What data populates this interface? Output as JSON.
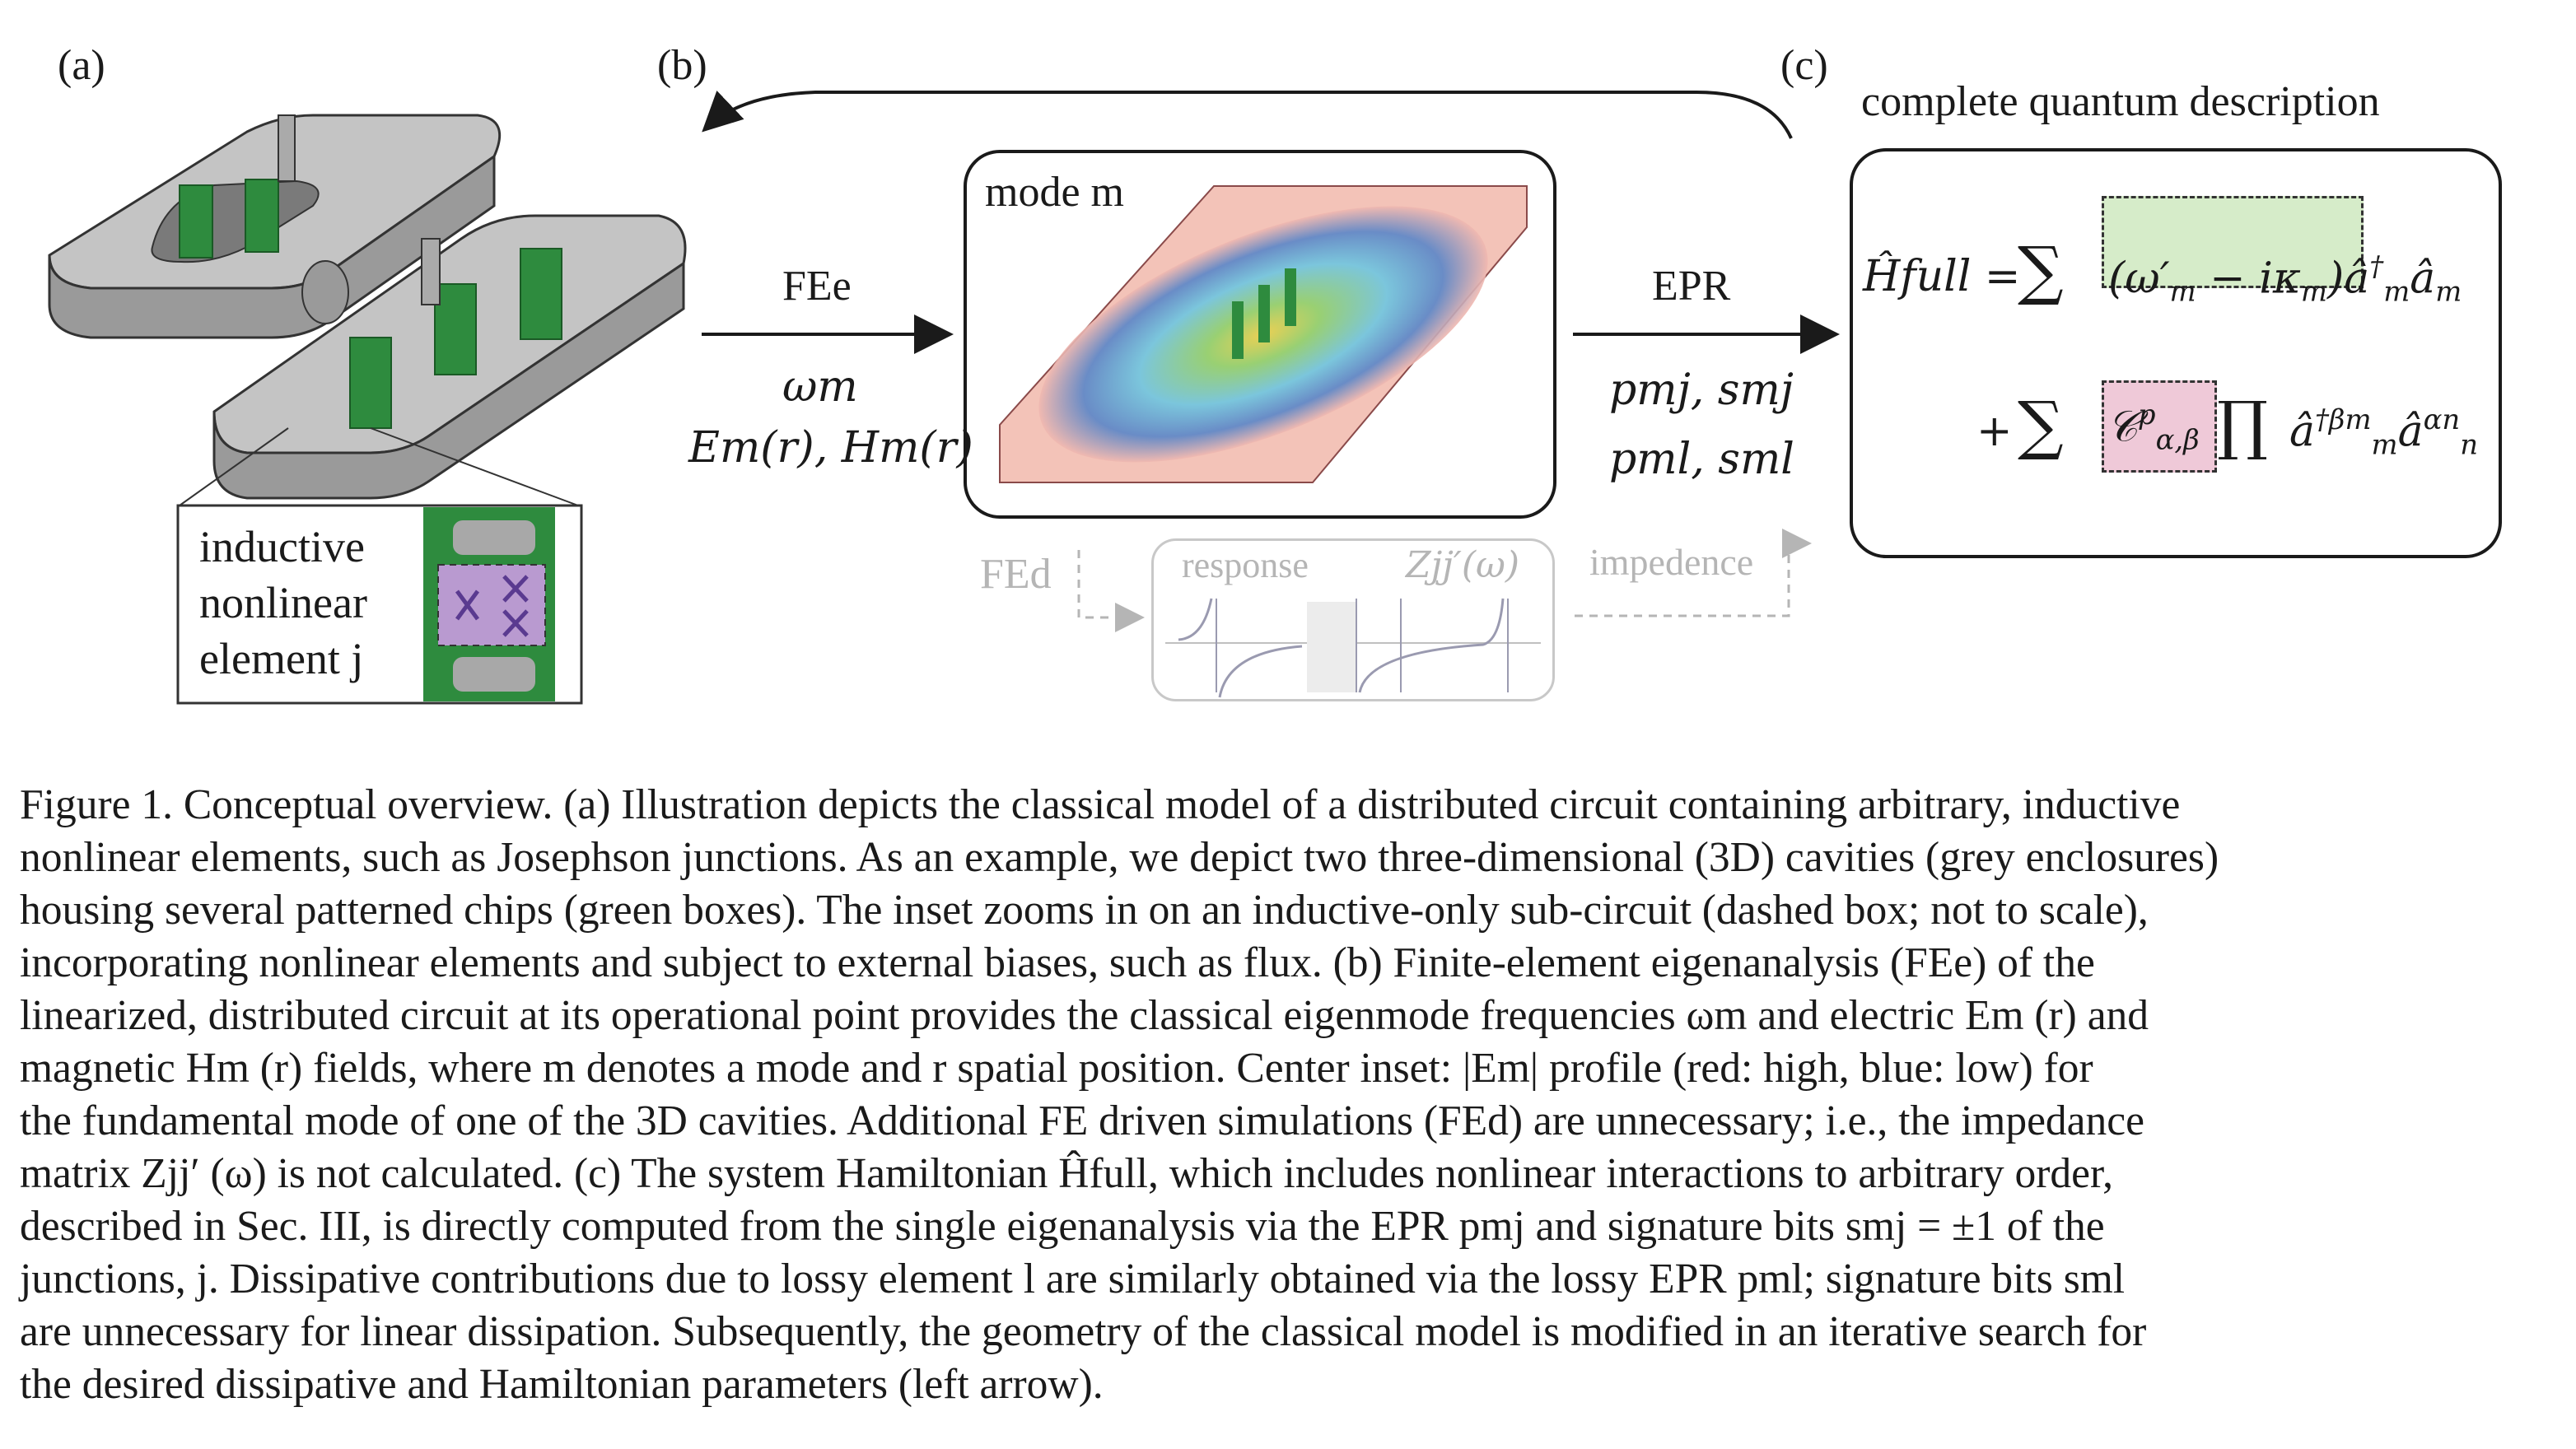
{
  "figure": {
    "panel_a": "(a)",
    "panel_b": "(b)",
    "panel_c": "(c)",
    "inset_label_line1": "inductive",
    "inset_label_line2": "nonlinear",
    "inset_label_line3": "element j",
    "mode_label": "mode m",
    "fe_e_label": "FEe",
    "omega_label": "ωm",
    "fields_label": "Em(r), Hm(r)",
    "epr_label": "EPR",
    "p_s_mj_label": "pmj, smj",
    "p_s_ml_label": "pml, sml",
    "complete_label": "complete quantum description",
    "h_full_label": "Ĥfull =",
    "fe_d_label": "FEd",
    "response_label": "response",
    "z_label": "Zjj′(ω)",
    "impedence_label": "impedence"
  },
  "caption": {
    "l1": "Figure 1. Conceptual overview. (a) Illustration depicts the classical model of a distributed circuit containing arbitrary, inductive",
    "l2": "nonlinear elements, such as Josephson junctions. As an example, we depict two three-dimensional (3D) cavities (grey enclosures)",
    "l3": "housing several patterned chips (green boxes). The inset zooms in on an inductive-only sub-circuit (dashed box; not to scale),",
    "l4": "incorporating nonlinear elements and subject to external biases, such as flux. (b) Finite-element eigenanalysis (FEe) of the",
    "l5": "linearized, distributed circuit at its operational point provides the classical eigenmode frequencies ωm and electric Em (r) and",
    "l6": "magnetic Hm (r) fields, where m denotes a mode and r spatial position. Center inset: |Em| profile (red: high, blue: low) for",
    "l7": "the fundamental mode of one of the 3D cavities. Additional FE driven simulations (FEd) are unnecessary; i.e., the impedance",
    "l8": "matrix Zjj′ (ω) is not calculated. (c) The system Hamiltonian Ĥfull, which includes nonlinear interactions to arbitrary order,",
    "l9": "described in Sec. III, is directly computed from the single eigenanalysis via the EPR pmj and signature bits smj = ±1 of the",
    "l10": "junctions, j. Dissipative contributions due to lossy element l are similarly obtained via the lossy EPR pml; signature bits sml",
    "l11": "are unnecessary for linear dissipation. Subsequently, the geometry of the classical model is modified in an iterative search for",
    "l12": "the desired dissipative and Hamiltonian parameters (left arrow)."
  },
  "colors": {
    "chip_green": "#2e8b3e",
    "enclosure_grey": "#bcbcbc",
    "junction_purple": "#b99ad0",
    "green_box": "#d6ecc9",
    "pink_box": "#efc9d8",
    "faded": "#b5b5b5"
  }
}
